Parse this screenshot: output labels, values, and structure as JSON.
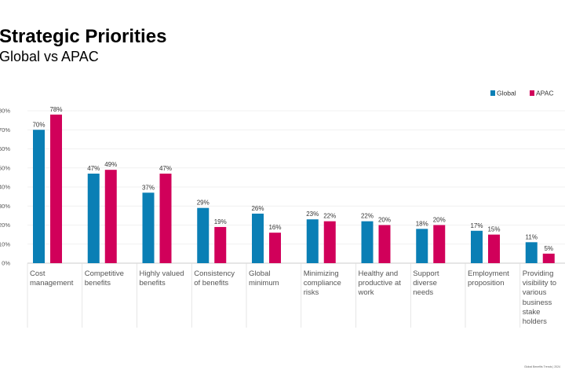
{
  "header": {
    "title": "Strategic Priorities",
    "subtitle": "Global vs APAC"
  },
  "footer": {
    "text": "Global Benefits Trends | 2024"
  },
  "colors": {
    "global": "#0a7fb5",
    "apac": "#d1005a"
  },
  "chart_data": {
    "type": "bar",
    "ylim": [
      0,
      80
    ],
    "yticks": [
      "0%",
      "10%",
      "20%",
      "30%",
      "40%",
      "50%",
      "60%",
      "70%",
      "80%"
    ],
    "categories": [
      "Cost management",
      "Competitive benefits",
      "Highly valued benefits",
      "Consistency of benefits",
      "Global minimum",
      "Minimizing compliance risks",
      "Healthy and productive at work",
      "Support diverse needs",
      "Employment proposition",
      "Providing visibility to various business stake holders"
    ],
    "series": [
      {
        "name": "Global",
        "values": [
          70,
          47,
          37,
          29,
          26,
          23,
          22,
          18,
          17,
          11
        ]
      },
      {
        "name": "APAC",
        "values": [
          78,
          49,
          47,
          19,
          16,
          22,
          20,
          20,
          15,
          5
        ]
      }
    ],
    "grid": true,
    "legend": "top-right"
  }
}
